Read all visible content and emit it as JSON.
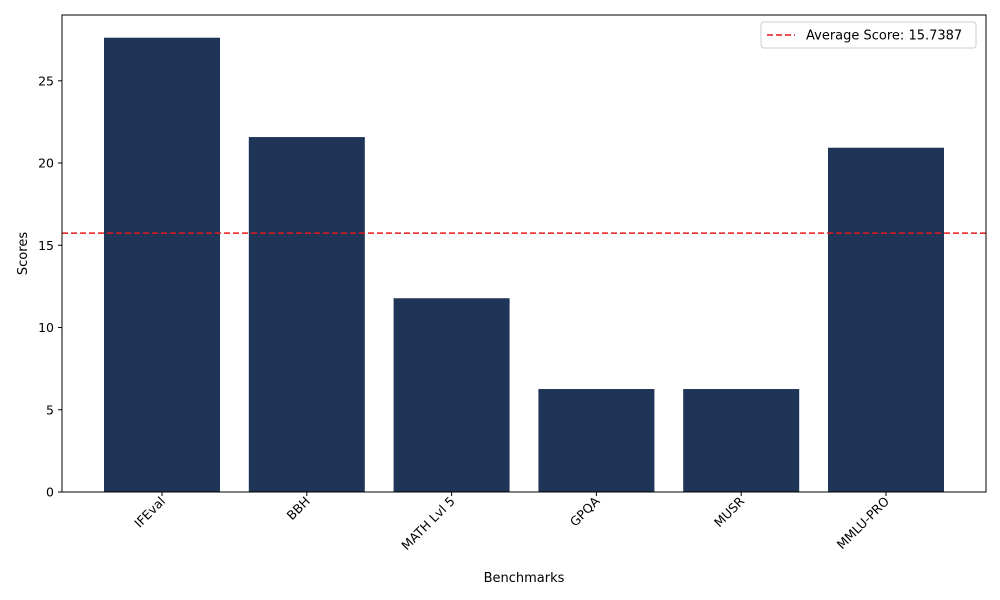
{
  "chart_data": {
    "type": "bar",
    "categories": [
      "IFEval",
      "BBH",
      "MATH Lvl 5",
      "GPQA",
      "MUSR",
      "MMLU-PRO"
    ],
    "values": [
      27.62,
      21.58,
      11.78,
      6.26,
      6.26,
      20.93
    ],
    "title": "",
    "xlabel": "Benchmarks",
    "ylabel": "Scores",
    "ylim": [
      0,
      29.0
    ],
    "yticks": [
      0,
      5,
      10,
      15,
      20,
      25
    ],
    "xtick_rotation": 45,
    "grid": false,
    "bar_color": "#1f3557",
    "reference_line": {
      "value": 15.7387,
      "label": "Average Score: 15.7387",
      "color": "#e31a1c",
      "style": "dashed"
    },
    "legend": {
      "placement": "top-right"
    }
  }
}
